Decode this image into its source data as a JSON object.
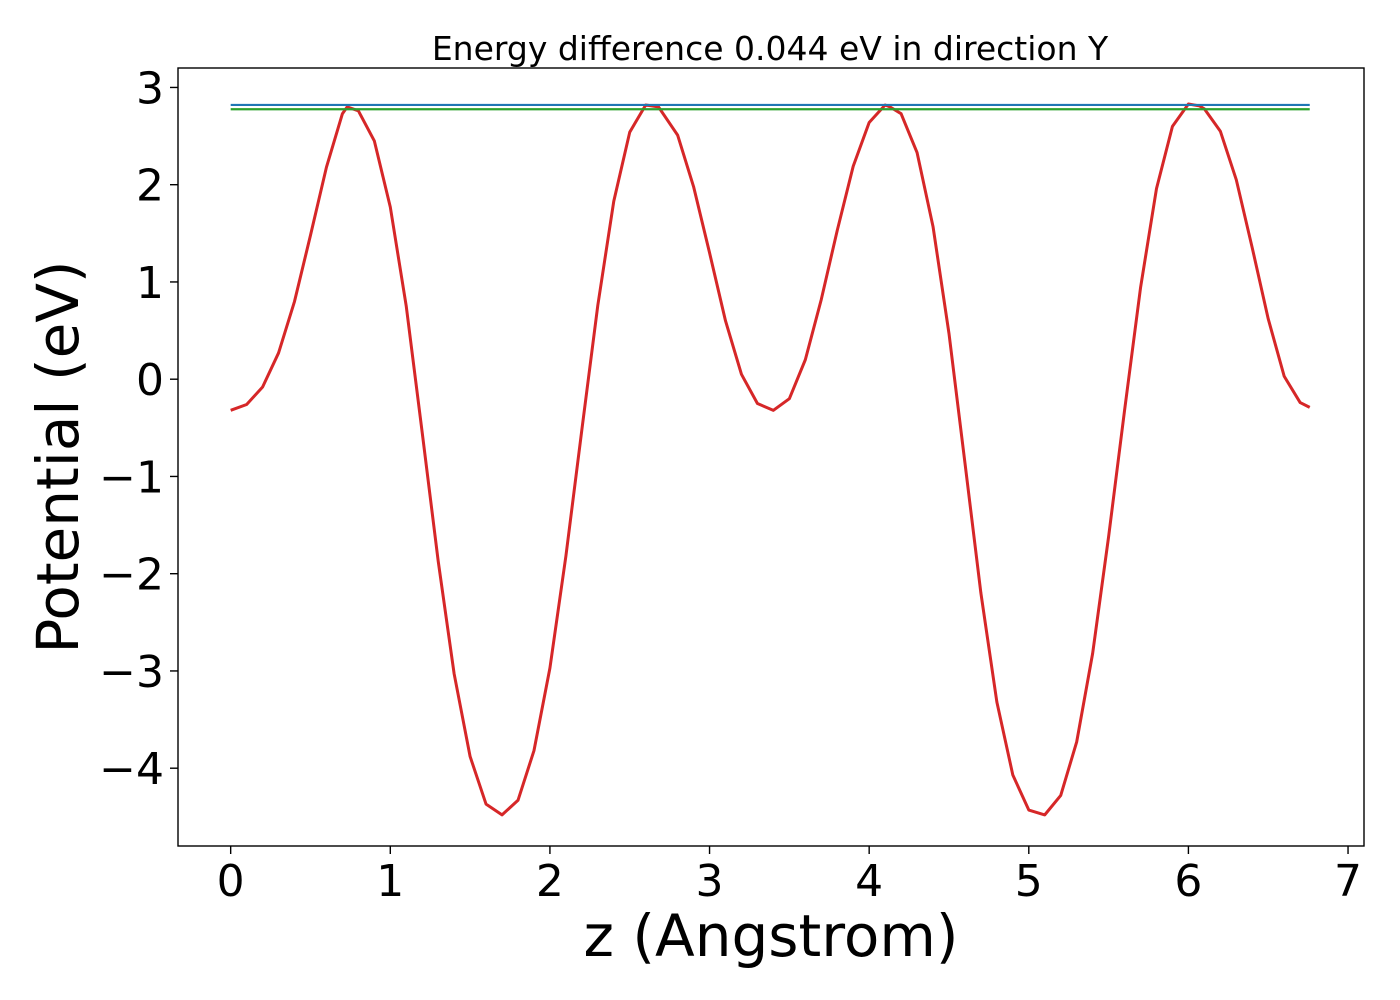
{
  "chart_data": {
    "type": "line",
    "title": "Energy difference 0.044 eV in direction Y",
    "xlabel": "z (Angstrom)",
    "ylabel": "Potential (eV)",
    "xlim": [
      -0.33,
      7.1
    ],
    "ylim": [
      -4.8,
      3.2
    ],
    "xticks": [
      0,
      1,
      2,
      3,
      4,
      5,
      6,
      7
    ],
    "xtick_labels": [
      "0",
      "1",
      "2",
      "3",
      "4",
      "5",
      "6",
      "7"
    ],
    "yticks": [
      -4,
      -3,
      -2,
      -1,
      0,
      1,
      2,
      3
    ],
    "ytick_labels": [
      "−4",
      "−3",
      "−2",
      "−1",
      "0",
      "1",
      "2",
      "3"
    ],
    "grid": false,
    "series": [
      {
        "color": "#d62728",
        "points": [
          [
            0.0,
            -0.32
          ],
          [
            0.1,
            -0.26
          ],
          [
            0.2,
            -0.08
          ],
          [
            0.3,
            0.27
          ],
          [
            0.4,
            0.8
          ],
          [
            0.5,
            1.48
          ],
          [
            0.6,
            2.18
          ],
          [
            0.7,
            2.73
          ],
          [
            0.73,
            2.8
          ],
          [
            0.8,
            2.76
          ],
          [
            0.9,
            2.45
          ],
          [
            1.0,
            1.77
          ],
          [
            1.1,
            0.75
          ],
          [
            1.2,
            -0.55
          ],
          [
            1.3,
            -1.87
          ],
          [
            1.4,
            -3.03
          ],
          [
            1.5,
            -3.88
          ],
          [
            1.6,
            -4.37
          ],
          [
            1.7,
            -4.48
          ],
          [
            1.8,
            -4.33
          ],
          [
            1.9,
            -3.82
          ],
          [
            2.0,
            -2.97
          ],
          [
            2.1,
            -1.82
          ],
          [
            2.2,
            -0.52
          ],
          [
            2.3,
            0.76
          ],
          [
            2.4,
            1.83
          ],
          [
            2.5,
            2.54
          ],
          [
            2.6,
            2.82
          ],
          [
            2.68,
            2.8
          ],
          [
            2.8,
            2.51
          ],
          [
            2.9,
            1.98
          ],
          [
            3.0,
            1.3
          ],
          [
            3.1,
            0.6
          ],
          [
            3.2,
            0.05
          ],
          [
            3.3,
            -0.25
          ],
          [
            3.4,
            -0.32
          ],
          [
            3.5,
            -0.2
          ],
          [
            3.6,
            0.2
          ],
          [
            3.7,
            0.82
          ],
          [
            3.8,
            1.53
          ],
          [
            3.9,
            2.19
          ],
          [
            4.0,
            2.64
          ],
          [
            4.1,
            2.82
          ],
          [
            4.13,
            2.8
          ],
          [
            4.2,
            2.73
          ],
          [
            4.3,
            2.33
          ],
          [
            4.4,
            1.57
          ],
          [
            4.5,
            0.47
          ],
          [
            4.6,
            -0.86
          ],
          [
            4.7,
            -2.2
          ],
          [
            4.8,
            -3.32
          ],
          [
            4.9,
            -4.07
          ],
          [
            5.0,
            -4.43
          ],
          [
            5.1,
            -4.48
          ],
          [
            5.2,
            -4.28
          ],
          [
            5.3,
            -3.73
          ],
          [
            5.4,
            -2.82
          ],
          [
            5.5,
            -1.62
          ],
          [
            5.6,
            -0.32
          ],
          [
            5.7,
            0.94
          ],
          [
            5.8,
            1.96
          ],
          [
            5.9,
            2.6
          ],
          [
            6.0,
            2.83
          ],
          [
            6.07,
            2.81
          ],
          [
            6.1,
            2.78
          ],
          [
            6.2,
            2.55
          ],
          [
            6.3,
            2.05
          ],
          [
            6.4,
            1.35
          ],
          [
            6.5,
            0.62
          ],
          [
            6.6,
            0.03
          ],
          [
            6.7,
            -0.24
          ],
          [
            6.76,
            -0.29
          ]
        ]
      },
      {
        "color": "#1f77b4",
        "points": [
          [
            0.0,
            2.82
          ],
          [
            6.76,
            2.82
          ]
        ]
      },
      {
        "color": "#2ca02c",
        "points": [
          [
            0.0,
            2.776
          ],
          [
            6.76,
            2.776
          ]
        ]
      }
    ]
  }
}
